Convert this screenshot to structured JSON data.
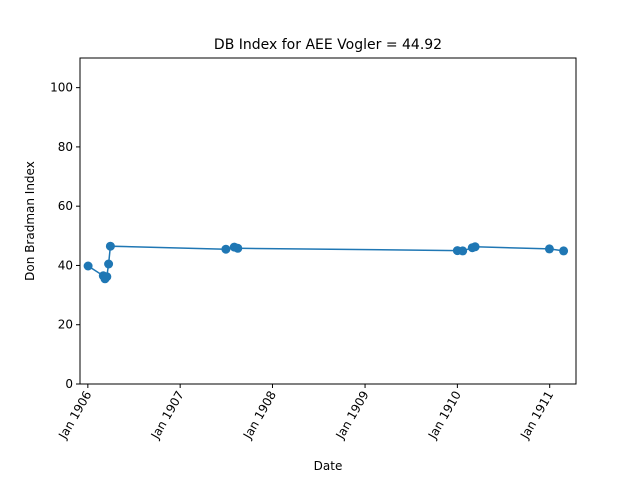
{
  "chart_data": {
    "type": "line",
    "title": "DB Index for AEE Vogler = 44.92",
    "xlabel": "Date",
    "ylabel": "Don Bradman Index",
    "xlim": [
      "1905-12-01",
      "1911-04-15"
    ],
    "ylim": [
      0,
      110
    ],
    "x_ticks": [
      {
        "date": "1906-01-01",
        "label": "Jan 1906"
      },
      {
        "date": "1907-01-01",
        "label": "Jan 1907"
      },
      {
        "date": "1908-01-01",
        "label": "Jan 1908"
      },
      {
        "date": "1909-01-01",
        "label": "Jan 1909"
      },
      {
        "date": "1910-01-01",
        "label": "Jan 1910"
      },
      {
        "date": "1911-01-01",
        "label": "Jan 1911"
      }
    ],
    "y_ticks": [
      0,
      20,
      40,
      60,
      80,
      100
    ],
    "grid": false,
    "color": "#1f77b4",
    "series": [
      {
        "x": [
          "1906-01-02",
          "1906-03-03",
          "1906-03-10",
          "1906-03-17",
          "1906-03-24",
          "1906-03-31",
          "1907-07-01",
          "1907-08-03",
          "1907-08-17",
          "1910-01-01",
          "1910-01-22",
          "1910-03-01",
          "1910-03-12",
          "1910-12-31",
          "1911-02-25"
        ],
        "y": [
          39.8,
          36.5,
          35.5,
          36.2,
          40.5,
          46.5,
          45.5,
          46.2,
          45.8,
          45.0,
          44.9,
          46.0,
          46.3,
          45.6,
          44.9
        ]
      }
    ]
  }
}
